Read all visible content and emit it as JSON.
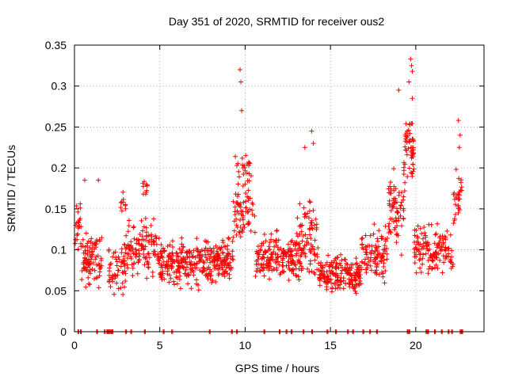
{
  "chart_data": {
    "type": "scatter",
    "title": "Day 351 of 2020, SRMTID for receiver ous2",
    "xlabel": "GPS time / hours",
    "ylabel": "SRMTID / TECUs",
    "xlim": [
      0,
      24
    ],
    "ylim": [
      0,
      0.35
    ],
    "xticks": [
      0,
      5,
      10,
      15,
      20
    ],
    "xtick_labels": [
      "0",
      "5",
      "10",
      "15",
      "20"
    ],
    "yticks": [
      0,
      0.05,
      0.1,
      0.15,
      0.2,
      0.25,
      0.3,
      0.35
    ],
    "ytick_labels": [
      "0",
      "0.05",
      "0.1",
      "0.15",
      "0.2",
      "0.25",
      "0.3",
      "0.35"
    ],
    "grid": true,
    "marker": "+",
    "color": "#ff0000",
    "clusters": [
      {
        "x_start": 0.0,
        "x_end": 0.4,
        "y_mean": 0.13,
        "y_spread": 0.035,
        "count": 22
      },
      {
        "x_start": 0.4,
        "x_end": 1.6,
        "y_mean": 0.09,
        "y_spread": 0.035,
        "count": 90
      },
      {
        "x_start": 2.0,
        "x_end": 3.0,
        "y_mean": 0.08,
        "y_spread": 0.035,
        "count": 60
      },
      {
        "x_start": 2.6,
        "x_end": 3.0,
        "y_mean": 0.16,
        "y_spread": 0.02,
        "count": 10
      },
      {
        "x_start": 3.0,
        "x_end": 5.0,
        "y_mean": 0.1,
        "y_spread": 0.035,
        "count": 120
      },
      {
        "x_start": 4.0,
        "x_end": 4.3,
        "y_mean": 0.175,
        "y_spread": 0.02,
        "count": 10
      },
      {
        "x_start": 5.0,
        "x_end": 7.0,
        "y_mean": 0.085,
        "y_spread": 0.03,
        "count": 160
      },
      {
        "x_start": 7.0,
        "x_end": 9.3,
        "y_mean": 0.085,
        "y_spread": 0.03,
        "count": 180
      },
      {
        "x_start": 9.3,
        "x_end": 10.6,
        "y_mean": 0.15,
        "y_spread": 0.04,
        "count": 70
      },
      {
        "x_start": 9.4,
        "x_end": 10.4,
        "y_mean": 0.2,
        "y_spread": 0.02,
        "count": 20
      },
      {
        "x_start": 10.6,
        "x_end": 13.0,
        "y_mean": 0.09,
        "y_spread": 0.03,
        "count": 170
      },
      {
        "x_start": 13.0,
        "x_end": 14.3,
        "y_mean": 0.11,
        "y_spread": 0.05,
        "count": 100
      },
      {
        "x_start": 14.3,
        "x_end": 16.8,
        "y_mean": 0.07,
        "y_spread": 0.025,
        "count": 190
      },
      {
        "x_start": 16.8,
        "x_end": 18.4,
        "y_mean": 0.095,
        "y_spread": 0.035,
        "count": 100
      },
      {
        "x_start": 18.4,
        "x_end": 19.3,
        "y_mean": 0.15,
        "y_spread": 0.05,
        "count": 70
      },
      {
        "x_start": 19.3,
        "x_end": 19.9,
        "y_mean": 0.22,
        "y_spread": 0.05,
        "count": 60
      },
      {
        "x_start": 19.9,
        "x_end": 21.3,
        "y_mean": 0.1,
        "y_spread": 0.03,
        "count": 90
      },
      {
        "x_start": 21.3,
        "x_end": 22.2,
        "y_mean": 0.1,
        "y_spread": 0.03,
        "count": 45
      },
      {
        "x_start": 22.2,
        "x_end": 22.7,
        "y_mean": 0.16,
        "y_spread": 0.04,
        "count": 30
      }
    ],
    "peaks": [
      {
        "x": 9.7,
        "y": 0.32
      },
      {
        "x": 9.75,
        "y": 0.305
      },
      {
        "x": 9.8,
        "y": 0.27
      },
      {
        "x": 13.9,
        "y": 0.245
      },
      {
        "x": 14.0,
        "y": 0.23
      },
      {
        "x": 13.5,
        "y": 0.225
      },
      {
        "x": 19.7,
        "y": 0.333
      },
      {
        "x": 19.75,
        "y": 0.325
      },
      {
        "x": 19.8,
        "y": 0.318
      },
      {
        "x": 19.6,
        "y": 0.305
      },
      {
        "x": 19.0,
        "y": 0.295
      },
      {
        "x": 19.8,
        "y": 0.285
      },
      {
        "x": 22.5,
        "y": 0.258
      },
      {
        "x": 22.6,
        "y": 0.24
      },
      {
        "x": 22.55,
        "y": 0.225
      },
      {
        "x": 1.4,
        "y": 0.185
      },
      {
        "x": 0.6,
        "y": 0.185
      }
    ],
    "zero_points_x": [
      0.2,
      0.35,
      1.3,
      1.75,
      1.9,
      2.0,
      2.1,
      2.2,
      3.0,
      3.3,
      4.1,
      5.2,
      5.7,
      7.9,
      9.2,
      9.5,
      11.1,
      12.0,
      12.4,
      12.7,
      13.4,
      13.9,
      14.8,
      15.3,
      16.0,
      16.3,
      16.9,
      17.3,
      17.7,
      19.5,
      19.6,
      20.6,
      20.7,
      21.1,
      21.5,
      21.9,
      22.1,
      22.6,
      22.7
    ]
  }
}
